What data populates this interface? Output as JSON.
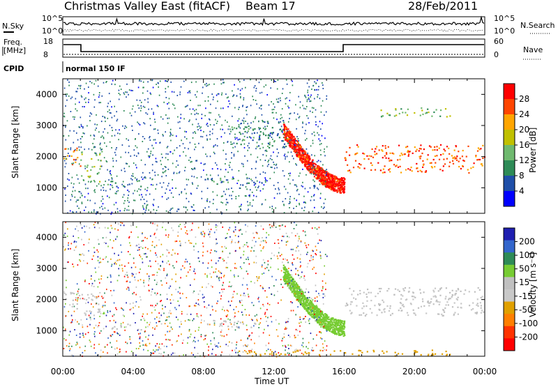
{
  "header": {
    "station": "Christmas Valley East (fitACF)",
    "beam": "Beam 17",
    "date": "28/Feb/2011"
  },
  "top_panels": {
    "nsky_label": "N.Sky",
    "nsearch_label": "N.Search",
    "noise_ticks_left": [
      "10^5",
      "10^0"
    ],
    "noise_ticks_right": [
      "10^5",
      "10^0"
    ],
    "freq_label": "Freq.",
    "freq_unit": "[MHz]",
    "freq_ticks": [
      "18",
      "8"
    ],
    "nave_label": "Nave",
    "nave_ticks": [
      "60",
      "0"
    ],
    "cpid_label": "CPID",
    "cpid_value": "normal 150 IF"
  },
  "colors": {
    "power_scale": [
      "#0000ff",
      "#1f4fa8",
      "#2e8b57",
      "#6fb96f",
      "#c0c000",
      "#ffa500",
      "#ff4500",
      "#ff0000"
    ],
    "velocity_scale": [
      "#1f1fb0",
      "#3366cc",
      "#2e8b57",
      "#77cc33",
      "#c0c0c0",
      "#c8c8c8",
      "#e0a000",
      "#ff7f00",
      "#ff3300",
      "#ff0000"
    ]
  },
  "chart_data": [
    {
      "type": "heatmap",
      "name": "power",
      "ylabel": "Slant Range [km]",
      "yticks": [
        "4000",
        "3000",
        "2000",
        "1000"
      ],
      "xticks": [
        "00:00",
        "04:00",
        "08:00",
        "12:00",
        "16:00",
        "20:00",
        "00:00"
      ],
      "ylim": [
        180,
        4500
      ],
      "colorbar": {
        "label": "Power [dB]",
        "ticks": [
          "28",
          "24",
          "20",
          "16",
          "12",
          "8",
          "4"
        ],
        "range": [
          0,
          30
        ]
      },
      "regions": [
        {
          "t0": 0.0,
          "t1": 1.0,
          "r0": 1700,
          "r1": 2300,
          "v": 22
        },
        {
          "t0": 1.0,
          "t1": 2.2,
          "r0": 1200,
          "r1": 2200,
          "v": 14
        },
        {
          "t0": 2.5,
          "t1": 4.5,
          "r0": 1050,
          "r1": 1250,
          "v": 8
        },
        {
          "t0": 8.0,
          "t1": 11.0,
          "r0": 1100,
          "r1": 1350,
          "v": 9
        },
        {
          "t0": 9.5,
          "t1": 11.0,
          "r0": 2400,
          "r1": 3000,
          "v": 10
        },
        {
          "t0": 11.0,
          "t1": 12.8,
          "r0": 2300,
          "r1": 3200,
          "v": 9
        },
        {
          "t0": 16.0,
          "t1": 24.0,
          "r0": 1500,
          "r1": 2400,
          "v": 24
        },
        {
          "t0": 18.0,
          "t1": 22.0,
          "r0": 3300,
          "r1": 3600,
          "v": 13
        }
      ],
      "arc": {
        "t0": 12.5,
        "t1": 16.0,
        "r_start": 2900,
        "r_end": 1100,
        "v": 28
      }
    },
    {
      "type": "heatmap",
      "name": "velocity",
      "ylabel": "Slant Range [km]",
      "yticks": [
        "4000",
        "3000",
        "2000",
        "1000"
      ],
      "xticks": [
        "00:00",
        "04:00",
        "08:00",
        "12:00",
        "16:00",
        "20:00",
        "00:00"
      ],
      "xlabel": "Time UT",
      "ylim": [
        180,
        4500
      ],
      "colorbar": {
        "label": "Velocity [m s⁻¹]",
        "ticks": [
          "200",
          "100",
          "50",
          "15",
          "-15",
          "-50",
          "-100",
          "-200"
        ],
        "range": [
          -250,
          250
        ]
      },
      "regions": [
        {
          "t0": 0.0,
          "t1": 1.0,
          "r0": 1700,
          "r1": 2300,
          "v": 0
        },
        {
          "t0": 1.0,
          "t1": 2.2,
          "r0": 1400,
          "r1": 2200,
          "v": -30
        },
        {
          "t0": 2.5,
          "t1": 4.5,
          "r0": 1050,
          "r1": 1250,
          "v": 40
        },
        {
          "t0": 8.0,
          "t1": 11.0,
          "r0": 1100,
          "r1": 1350,
          "v": 30
        },
        {
          "t0": 16.0,
          "t1": 24.0,
          "r0": 1500,
          "r1": 2400,
          "v": 0
        },
        {
          "t0": 10.0,
          "t1": 22.0,
          "r0": 200,
          "r1": 400,
          "v": -60
        }
      ],
      "arc": {
        "t0": 12.5,
        "t1": 16.0,
        "r_start": 2900,
        "r_end": 1100,
        "v": 60
      }
    }
  ]
}
